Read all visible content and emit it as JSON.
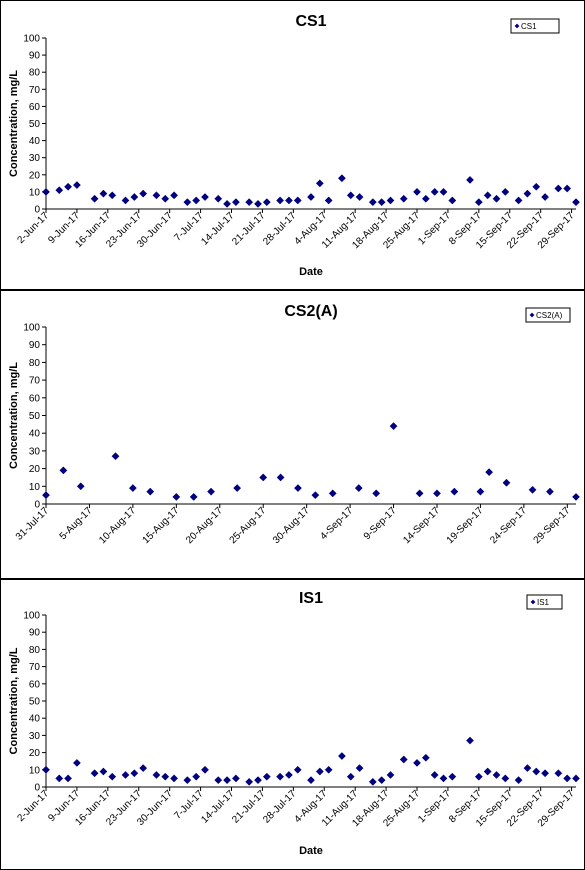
{
  "charts": [
    {
      "title": "CS1",
      "xlabel": "Date",
      "ylabel": "Concentration, mg/L",
      "legend": "CS1",
      "legend_position": "top-right",
      "marker_color": "#000080",
      "ylim": [
        0,
        100
      ],
      "yticks": [
        0,
        10,
        20,
        30,
        40,
        50,
        60,
        70,
        80,
        90,
        100
      ],
      "xlim": [
        "2017-06-02",
        "2017-09-30"
      ],
      "xtick_labels": [
        "2-Jun-17",
        "9-Jun-17",
        "16-Jun-17",
        "23-Jun-17",
        "30-Jun-17",
        "7-Jul-17",
        "14-Jul-17",
        "21-Jul-17",
        "28-Jul-17",
        "4-Aug-17",
        "11-Aug-17",
        "18-Aug-17",
        "25-Aug-17",
        "1-Sep-17",
        "8-Sep-17",
        "15-Sep-17",
        "22-Sep-17",
        "29-Sep-17"
      ]
    },
    {
      "title": "CS2(A)",
      "xlabel": "",
      "ylabel": "Concentration, mg/L",
      "legend": "CS2(A)",
      "legend_position": "top-right",
      "marker_color": "#000080",
      "ylim": [
        0,
        100
      ],
      "yticks": [
        0,
        10,
        20,
        30,
        40,
        50,
        60,
        70,
        80,
        90,
        100
      ],
      "xlim": [
        "2017-07-31",
        "2017-09-30"
      ],
      "xtick_labels": [
        "31-Jul-17",
        "5-Aug-17",
        "10-Aug-17",
        "15-Aug-17",
        "20-Aug-17",
        "25-Aug-17",
        "30-Aug-17",
        "4-Sep-17",
        "9-Sep-17",
        "14-Sep-17",
        "19-Sep-17",
        "24-Sep-17",
        "29-Sep-17"
      ]
    },
    {
      "title": "IS1",
      "xlabel": "Date",
      "ylabel": "Concentration, mg/L",
      "legend": "IS1",
      "legend_position": "top-right",
      "marker_color": "#000080",
      "ylim": [
        0,
        100
      ],
      "yticks": [
        0,
        10,
        20,
        30,
        40,
        50,
        60,
        70,
        80,
        90,
        100
      ],
      "xlim": [
        "2017-06-02",
        "2017-09-30"
      ],
      "xtick_labels": [
        "2-Jun-17",
        "9-Jun-17",
        "16-Jun-17",
        "23-Jun-17",
        "30-Jun-17",
        "7-Jul-17",
        "14-Jul-17",
        "21-Jul-17",
        "28-Jul-17",
        "4-Aug-17",
        "11-Aug-17",
        "18-Aug-17",
        "25-Aug-17",
        "1-Sep-17",
        "8-Sep-17",
        "15-Sep-17",
        "22-Sep-17",
        "29-Sep-17"
      ]
    }
  ],
  "chart_data": [
    {
      "type": "scatter",
      "title": "CS1",
      "xlabel": "Date",
      "ylabel": "Concentration, mg/L",
      "ylim": [
        0,
        100
      ],
      "grid": false,
      "legend": "top-right",
      "series": [
        {
          "name": "CS1",
          "x": [
            "2017-06-02",
            "2017-06-05",
            "2017-06-07",
            "2017-06-09",
            "2017-06-13",
            "2017-06-15",
            "2017-06-17",
            "2017-06-20",
            "2017-06-22",
            "2017-06-24",
            "2017-06-27",
            "2017-06-29",
            "2017-07-01",
            "2017-07-04",
            "2017-07-06",
            "2017-07-08",
            "2017-07-11",
            "2017-07-13",
            "2017-07-15",
            "2017-07-18",
            "2017-07-20",
            "2017-07-22",
            "2017-07-25",
            "2017-07-27",
            "2017-07-29",
            "2017-08-01",
            "2017-08-03",
            "2017-08-05",
            "2017-08-08",
            "2017-08-10",
            "2017-08-12",
            "2017-08-15",
            "2017-08-17",
            "2017-08-19",
            "2017-08-22",
            "2017-08-25",
            "2017-08-27",
            "2017-08-29",
            "2017-08-31",
            "2017-09-02",
            "2017-09-06",
            "2017-09-08",
            "2017-09-10",
            "2017-09-12",
            "2017-09-14",
            "2017-09-17",
            "2017-09-19",
            "2017-09-21",
            "2017-09-23",
            "2017-09-26",
            "2017-09-28",
            "2017-09-30"
          ],
          "y": [
            10,
            11,
            13,
            14,
            6,
            9,
            8,
            5,
            7,
            9,
            8,
            6,
            8,
            4,
            5,
            7,
            6,
            3,
            4,
            4,
            3,
            4,
            5,
            5,
            5,
            7,
            15,
            5,
            18,
            8,
            7,
            4,
            4,
            5,
            6,
            10,
            6,
            10,
            10,
            5,
            17,
            4,
            8,
            6,
            10,
            5,
            9,
            13,
            7,
            12,
            12,
            4
          ]
        }
      ]
    },
    {
      "type": "scatter",
      "title": "CS2(A)",
      "xlabel": "",
      "ylabel": "Concentration, mg/L",
      "ylim": [
        0,
        100
      ],
      "grid": false,
      "legend": "top-right",
      "series": [
        {
          "name": "CS2(A)",
          "x": [
            "2017-07-31",
            "2017-08-02",
            "2017-08-04",
            "2017-08-08",
            "2017-08-10",
            "2017-08-12",
            "2017-08-15",
            "2017-08-17",
            "2017-08-19",
            "2017-08-22",
            "2017-08-25",
            "2017-08-27",
            "2017-08-29",
            "2017-08-31",
            "2017-09-02",
            "2017-09-05",
            "2017-09-07",
            "2017-09-09",
            "2017-09-12",
            "2017-09-14",
            "2017-09-16",
            "2017-09-19",
            "2017-09-20",
            "2017-09-22",
            "2017-09-25",
            "2017-09-27",
            "2017-09-30"
          ],
          "y": [
            5,
            19,
            10,
            27,
            9,
            7,
            4,
            4,
            7,
            9,
            15,
            15,
            9,
            5,
            6,
            9,
            6,
            44,
            6,
            6,
            7,
            7,
            18,
            12,
            8,
            7,
            4
          ]
        }
      ]
    },
    {
      "type": "scatter",
      "title": "IS1",
      "xlabel": "Date",
      "ylabel": "Concentration, mg/L",
      "ylim": [
        0,
        100
      ],
      "grid": false,
      "legend": "top-right",
      "series": [
        {
          "name": "IS1",
          "x": [
            "2017-06-02",
            "2017-06-05",
            "2017-06-07",
            "2017-06-09",
            "2017-06-13",
            "2017-06-15",
            "2017-06-17",
            "2017-06-20",
            "2017-06-22",
            "2017-06-24",
            "2017-06-27",
            "2017-06-29",
            "2017-07-01",
            "2017-07-04",
            "2017-07-06",
            "2017-07-08",
            "2017-07-11",
            "2017-07-13",
            "2017-07-15",
            "2017-07-18",
            "2017-07-20",
            "2017-07-22",
            "2017-07-25",
            "2017-07-27",
            "2017-07-29",
            "2017-08-01",
            "2017-08-03",
            "2017-08-05",
            "2017-08-08",
            "2017-08-10",
            "2017-08-12",
            "2017-08-15",
            "2017-08-17",
            "2017-08-19",
            "2017-08-22",
            "2017-08-25",
            "2017-08-27",
            "2017-08-29",
            "2017-08-31",
            "2017-09-02",
            "2017-09-06",
            "2017-09-08",
            "2017-09-10",
            "2017-09-12",
            "2017-09-14",
            "2017-09-17",
            "2017-09-19",
            "2017-09-21",
            "2017-09-23",
            "2017-09-26",
            "2017-09-28",
            "2017-09-30"
          ],
          "y": [
            10,
            5,
            5,
            14,
            8,
            9,
            6,
            7,
            8,
            11,
            7,
            6,
            5,
            4,
            6,
            10,
            4,
            4,
            5,
            3,
            4,
            6,
            6,
            7,
            10,
            4,
            9,
            10,
            18,
            6,
            11,
            3,
            4,
            7,
            16,
            14,
            17,
            7,
            5,
            6,
            27,
            6,
            9,
            7,
            5,
            4,
            11,
            9,
            8,
            8,
            5,
            5
          ]
        }
      ]
    }
  ]
}
